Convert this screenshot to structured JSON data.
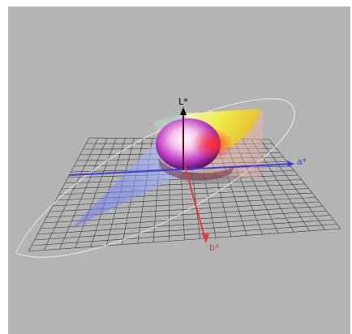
{
  "axes": {
    "l_label": "L*",
    "a_label": "a*",
    "b_label": "b*"
  }
}
